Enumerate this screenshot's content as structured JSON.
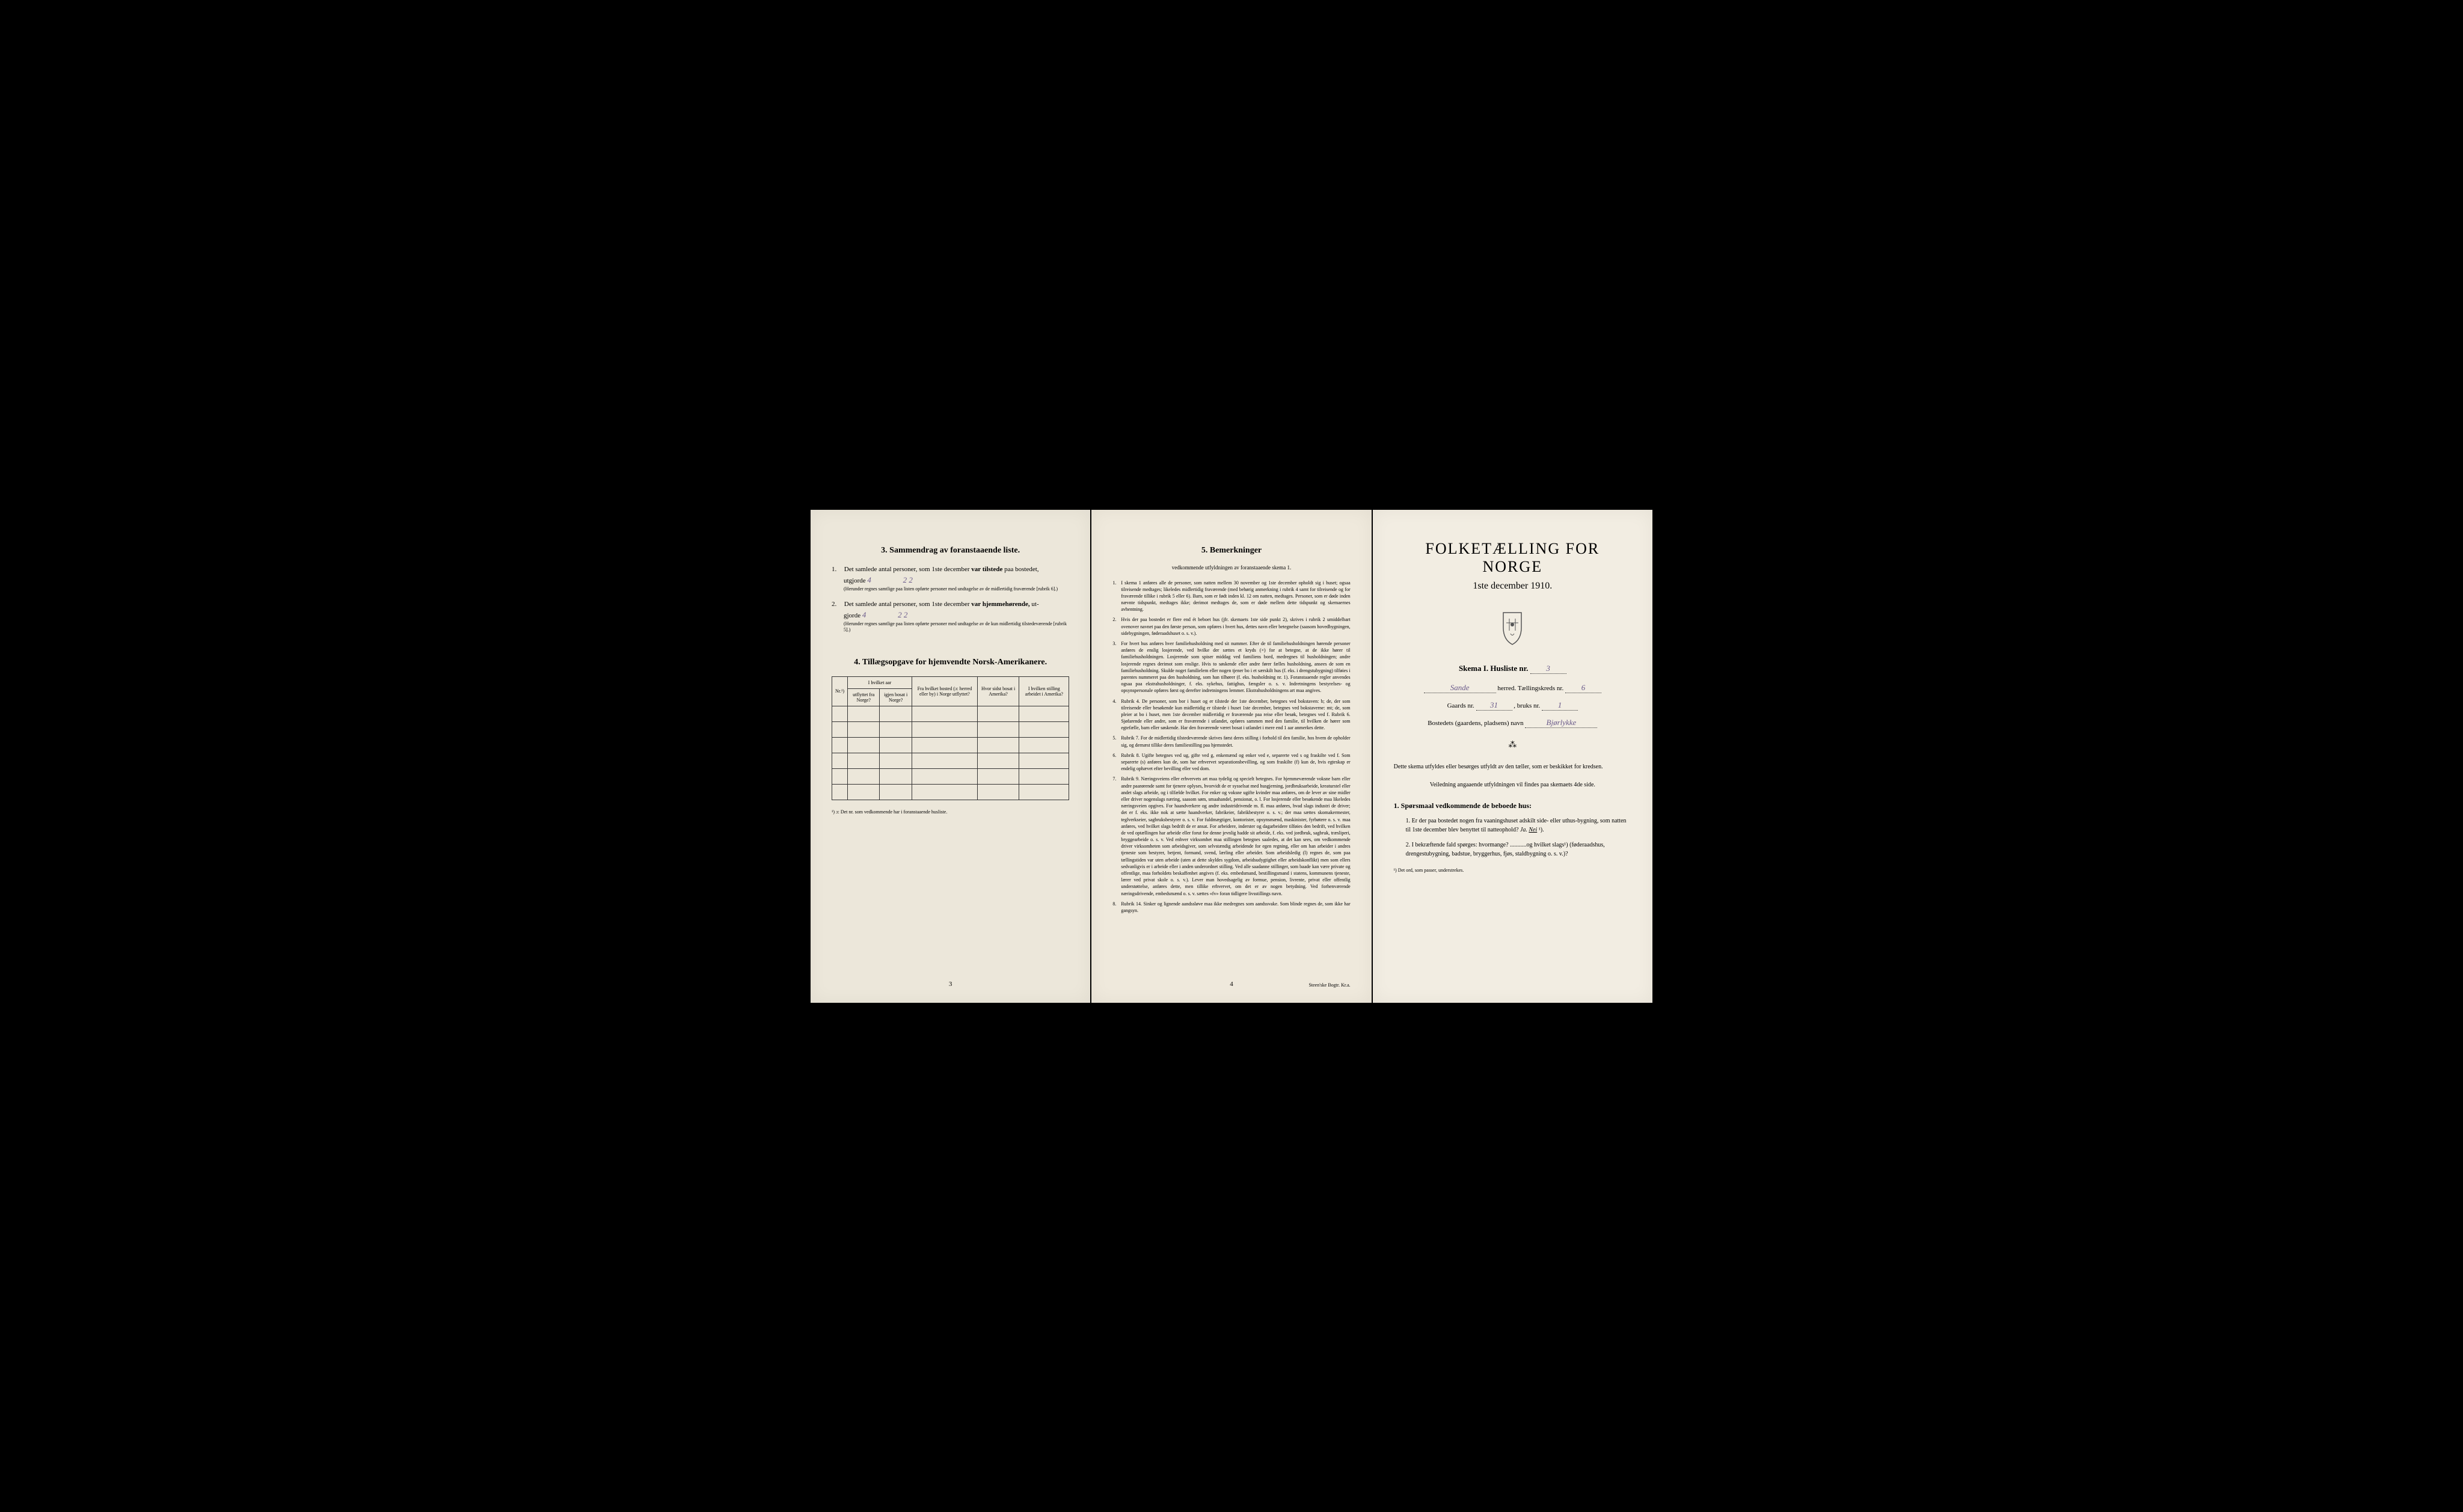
{
  "leftPage": {
    "section3": {
      "header": "3.   Sammendrag av foranstaaende liste.",
      "item1": {
        "num": "1.",
        "text1": "Det samlede antal personer, som 1ste december",
        "bold1": "var tilstede",
        "text2": "paa bostedet,",
        "text3": "utgjorde",
        "value": "4",
        "handwritten": "2   2",
        "note": "(Herunder regnes samtlige paa listen opførte personer med undtagelse av de midlertidig fraværende [rubrik 6].)"
      },
      "item2": {
        "num": "2.",
        "text1": "Det samlede antal personer, som 1ste december",
        "bold1": "var hjemmehørende,",
        "text2": "ut-",
        "text3": "gjorde",
        "value": "4",
        "handwritten": "2   2",
        "note": "(Herunder regnes samtlige paa listen opførte personer med undtagelse av de kun midlertidig tilstedeværende [rubrik 5].)"
      }
    },
    "section4": {
      "header": "4.   Tillægsopgave for hjemvendte Norsk-Amerikanere.",
      "tableHeaders": {
        "col1": "Nr.¹)",
        "col2Top": "I hvilket aar",
        "col2a": "utflyttet fra Norge?",
        "col2b": "igjen bosat i Norge?",
        "col3": "Fra hvilket bosted (ɔ: herred eller by) i Norge utflyttet?",
        "col4": "Hvor sidst bosat i Amerika?",
        "col5": "I hvilken stilling arbeidet i Amerika?"
      },
      "footnote": "¹) ɔ: Det nr. som vedkommende har i foranstaaende husliste."
    },
    "pageNumber": "3"
  },
  "middlePage": {
    "header": "5.   Bemerkninger",
    "subheader": "vedkommende utfyldningen av foranstaaende skema 1.",
    "items": [
      {
        "num": "1.",
        "text": "I skema 1 anføres alle de personer, som natten mellem 30 november og 1ste december opholdt sig i huset; ogsaa tilreisende medtages; likeledes midlertidig fraværende (med behørig anmerkning i rubrik 4 samt for tilreisende og for fraværende tillike i rubrik 5 eller 6). Barn, som er født inden kl. 12 om natten, medtages. Personer, som er døde inden nævnte tidspunkt, medtages ikke; derimot medtages de, som er døde mellem dette tidspunkt og skemaernes avhentning."
      },
      {
        "num": "2.",
        "text": "Hvis der paa bostedet er flere end ét beboet hus (jfr. skemaets 1ste side punkt 2), skrives i rubrik 2 umiddelbart ovenover navnet paa den første person, som opføres i hvert hus, dettes navn eller betegnelse (saasom hovedbygningen, sidebygningen, føderaadshuset o. s. v.)."
      },
      {
        "num": "3.",
        "text": "For hvert hus anføres hver familiehusholdning med sit nummer. Efter de til familiehusholdningen hørende personer anføres de enslig losjerende, ved hvilke der sættes et kryds (×) for at betegne, at de ikke hører til familiehusholdningen. Losjerende som spiser middag ved familiens bord, medregnes til husholdningen; andre losjerende regnes derimot som enslige. Hvis to søskende eller andre fører fælles husholdning, ansees de som en familiehusholdning. Skulde noget familielem eller nogen tjener bo i et særskilt hus (f. eks. i drengstubygning) tilføies i parentes nummeret paa den husholdning, som han tilhører (f. eks. husholdning nr. 1). Foranstaaende regler anvendes ogsaa paa ekstrahusholdninger, f. eks. sykehus, fattighus, fængsler o. s. v. Indretningens bestyrelses- og opsynspersonale opføres først og derefter indretningens lemmer. Ekstrahusholdningens art maa angives."
      },
      {
        "num": "4.",
        "text": "Rubrik 4. De personer, som bor i huset og er tilstede der 1ste december, betegnes ved bokstaven: b; de, der som tilreisende eller besøkende kun midlertidig er tilstede i huset 1ste december, betegnes ved bokstaverne: mt; de, som pleier at bo i huset, men 1ste december midlertidig er fraværende paa reise eller besøk, betegnes ved f. Rubrik 6. Sjøfarende eller andre, som er fraværende i utlandet, opføres sammen med den familie, til hvilken de hører som egtefælle, barn eller søskende. Har den fraværende været bosat i utlandet i mere end 1 aar anmerkes dette."
      },
      {
        "num": "5.",
        "text": "Rubrik 7. For de midlertidig tilstedeværende skrives først deres stilling i forhold til den familie, hos hvem de opholder sig, og dernæst tillike deres familiestilling paa hjemstedet."
      },
      {
        "num": "6.",
        "text": "Rubrik 8. Ugifte betegnes ved ug, gifte ved g, enkemænd og enker ved e, separerte ved s og fraskilte ved f. Som separerte (s) anføres kun de, som har erhvervet separationsbevilling, og som fraskilte (f) kun de, hvis egteskap er endelig ophævet efter bevilling eller ved dom."
      },
      {
        "num": "7.",
        "text": "Rubrik 9. Næringsveiens eller erhvervets art maa tydelig og specielt betegnes. For hjemmeværende voksne barn eller andre paarørende samt for tjenere oplyses, hvorvidt de er sysselsat med husgjerning, jordbruksarbeide, kreaturstel eller andet slags arbeide, og i tilfælde hvilket. For enker og voksne ugifte kvinder maa anføres, om de lever av sine midler eller driver nogenslags næring, saasom søm, smaahandel, pensionat, o. l. For losjerende eller besøkende maa likeledes næringsveien opgives. For haandverkere og andre industridrivende m. fl. maa anføres, hvad slags industri de driver; det er f. eks. ikke nok at sætte haandverker, fabrikeier, fabrikbestyrer o. s. v.; der maa sættes skomakermester, teglverkseier, sagbruksbestyrer o. s. v. For fuldmægtiger, kontorister, opsynsmænd, maskinister, fyrbøtere o. s. v. maa anføres, ved hvilket slags bedrift de er ansat. For arbeidere, inderster og dagarbeidere tilføies den bedrift, ved hvilken de ved optællingen har arbeide eller forut for denne jevnlig hadde sit arbeide, f. eks. ved jordbruk, sagbruk, træsliperi, bryggearbeide o. s. v. Ved enhver virksomhet maa stillingen betegnes saaledes, at det kan sees, om vedkommende driver virksomheten som arbeidsgiver, som selvstændig arbeidende for egen regning, eller om han arbeider i andres tjeneste som bestyrer, betjent, formand, svend, lærling eller arbeider. Som arbeidsledig (l) regnes de, som paa tællingstiden var uten arbeide (uten at dette skyldes sygdom, arbeidsudygtighet eller arbeidskonflikt) men som ellers sedvanligvis er i arbeide eller i anden underordnet stilling. Ved alle saadanne stillinger, som baade kan være private og offentlige, maa forholdets beskaffenhet angives (f. eks. embedsmand, bestillingsmand i statens, kommunens tjeneste, lærer ved privat skole o. s. v.). Lever man hovedsagelig av formue, pension, livrente, privat eller offentlig understøttelse, anføres dette, men tillike erhvervet, om det er av nogen betydning. Ved forhenværende næringsdrivende, embedsmænd o. s. v. sættes «fv» foran tidligere livsstillings navn."
      },
      {
        "num": "8.",
        "text": "Rubrik 14. Sinker og lignende aandssløve maa ikke medregnes som aandssvake. Som blinde regnes de, som ikke har gangsyn."
      }
    ],
    "pageNumber": "4",
    "printerMark": "Steen'ske Bogtr.   Kr.a."
  },
  "rightPage": {
    "title": "FOLKETÆLLING FOR NORGE",
    "subtitle": "1ste december 1910.",
    "skemaLine": {
      "label": "Skema I.   Husliste nr.",
      "value": "3"
    },
    "herredLine": {
      "value": "Sande",
      "label": "herred.   Tællingskreds nr.",
      "tkValue": "6"
    },
    "gaardsLine": {
      "label1": "Gaards nr.",
      "value1": "31",
      "label2": ", bruks nr.",
      "value2": "1"
    },
    "bostedLine": {
      "label": "Bostedets (gaardens, pladsens) navn",
      "value": "Bjørlykke"
    },
    "description1": "Dette skema utfyldes eller besørges utfyldt av den tæller, som er beskikket for kredsen.",
    "description2": "Veiledning angaaende utfyldningen vil findes paa skemaets 4de side.",
    "questionHeader": "1. Spørsmaal vedkommende de beboede hus:",
    "question1": {
      "num": "1.",
      "text1": "Er der paa bostedet nogen fra vaaningshuset adskilt side- eller uthus-bygning, som natten til 1ste december blev benyttet til natteophold?",
      "ja": "Ja.",
      "nei": "Nei",
      "mark": "¹)."
    },
    "question2": {
      "num": "2.",
      "text": "I bekræftende fald spørges: hvormange? ...........og hvilket slags¹) (føderaadshus, drengestubygning, badstue, bryggerhus, fjøs, staldbygning o. s. v.)?"
    },
    "footnote": "¹) Det ord, som passer, understrekes."
  }
}
